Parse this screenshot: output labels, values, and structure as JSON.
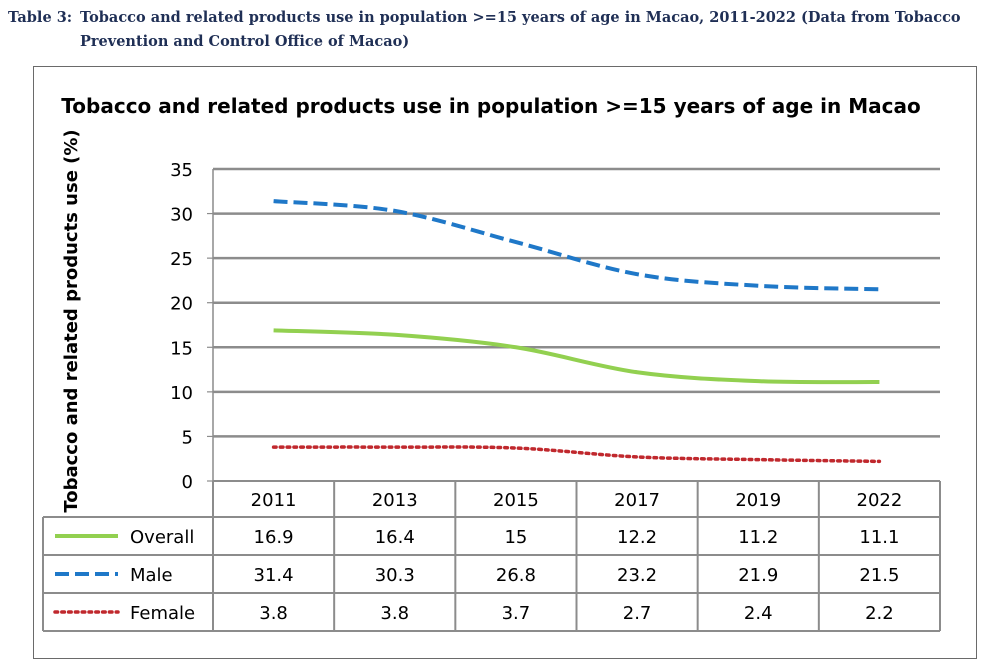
{
  "caption": {
    "label": "Table 3:",
    "text": "Tobacco and related products use in population >=15 years of age in Macao, 2011-2022 (Data from Tobacco Prevention and Control Office of Macao)"
  },
  "chart_data": {
    "type": "line",
    "title": "Tobacco and related products use in population >=15 years of age in Macao",
    "xlabel": "",
    "ylabel": "Tobacco and related products use (%)",
    "ylim": [
      0,
      35
    ],
    "yticks": [
      0,
      5,
      10,
      15,
      20,
      25,
      30,
      35
    ],
    "grid": true,
    "legend": "data-table",
    "categories": [
      "2011",
      "2013",
      "2015",
      "2017",
      "2019",
      "2022"
    ],
    "series": [
      {
        "name": "Overall",
        "values": [
          16.9,
          16.4,
          15,
          12.2,
          11.2,
          11.1
        ],
        "display": [
          "16.9",
          "16.4",
          "15",
          "12.2",
          "11.2",
          "11.1"
        ],
        "color": "#92d050",
        "style": "solid"
      },
      {
        "name": "Male",
        "values": [
          31.4,
          30.3,
          26.8,
          23.2,
          21.9,
          21.5
        ],
        "display": [
          "31.4",
          "30.3",
          "26.8",
          "23.2",
          "21.9",
          "21.5"
        ],
        "color": "#1f78c8",
        "style": "dashed"
      },
      {
        "name": "Female",
        "values": [
          3.8,
          3.8,
          3.7,
          2.7,
          2.4,
          2.2
        ],
        "display": [
          "3.8",
          "3.8",
          "3.7",
          "2.7",
          "2.4",
          "2.2"
        ],
        "color": "#c0282d",
        "style": "dotted"
      }
    ]
  }
}
